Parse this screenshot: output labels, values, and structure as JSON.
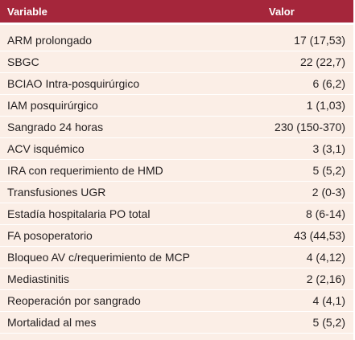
{
  "table": {
    "header": {
      "variable": "Variable",
      "value": "Valor"
    },
    "rows": [
      {
        "variable": "ARM prolongado",
        "value": "17 (17,53)"
      },
      {
        "variable": "SBGC",
        "value": "22 (22,7)"
      },
      {
        "variable": "BCIAO Intra-posquirúrgico",
        "value": "6 (6,2)"
      },
      {
        "variable": "IAM posquirúrgico",
        "value": "1 (1,03)"
      },
      {
        "variable": "Sangrado 24 horas",
        "value": "230 (150-370)"
      },
      {
        "variable": "ACV isquémico",
        "value": "3 (3,1)"
      },
      {
        "variable": "IRA con requerimiento de HMD",
        "value": "5 (5,2)"
      },
      {
        "variable": "Transfusiones UGR",
        "value": "2 (0-3)"
      },
      {
        "variable": "Estadía hospitalaria PO total",
        "value": "8 (6-14)"
      },
      {
        "variable": "FA posoperatorio",
        "value": "43 (44,53)"
      },
      {
        "variable": "Bloqueo AV c/requerimiento de MCP",
        "value": "4 (4,12)"
      },
      {
        "variable": "Mediastinitis",
        "value": "2 (2,16)"
      },
      {
        "variable": "Reoperación por sangrado",
        "value": "4 (4,1)"
      },
      {
        "variable": "Mortalidad al mes",
        "value": "5 (5,2)"
      }
    ]
  },
  "colors": {
    "header_bg": "#a5263b",
    "row_bg": "#fbeee6",
    "separator": "#ffffff"
  }
}
